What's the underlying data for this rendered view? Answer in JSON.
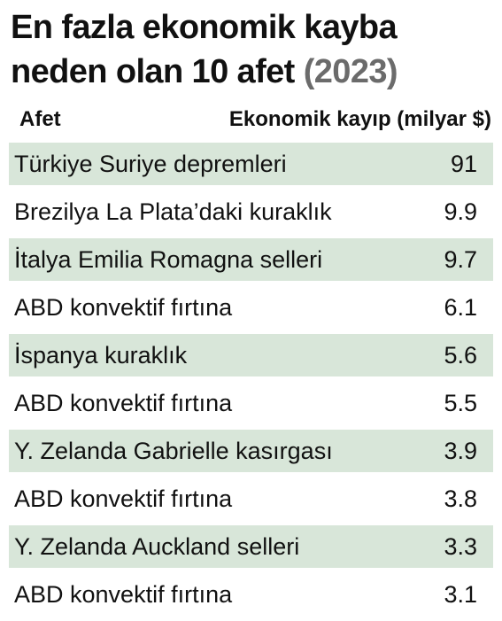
{
  "title": {
    "main": "En fazla ekonomik kayba neden olan 10 afet",
    "year": "(2023)"
  },
  "table": {
    "header_disaster": "Afet",
    "header_loss": "Ekonomik kayıp (milyar $)",
    "shade_color": "#d8e6d9",
    "rows": [
      {
        "name": "Türkiye Suriye depremleri",
        "value": "91"
      },
      {
        "name": "Brezilya La Plata’daki kuraklık",
        "value": "9.9"
      },
      {
        "name": "İtalya Emilia Romagna selleri",
        "value": "9.7"
      },
      {
        "name": "ABD konvektif fırtına",
        "value": "6.1"
      },
      {
        "name": "İspanya kuraklık",
        "value": "5.6"
      },
      {
        "name": "ABD konvektif fırtına",
        "value": "5.5"
      },
      {
        "name": "Y. Zelanda Gabrielle kasırgası",
        "value": "3.9"
      },
      {
        "name": "ABD konvektif fırtına",
        "value": "3.8"
      },
      {
        "name": "Y. Zelanda Auckland selleri",
        "value": "3.3"
      },
      {
        "name": "ABD konvektif fırtına",
        "value": "3.1"
      }
    ]
  }
}
